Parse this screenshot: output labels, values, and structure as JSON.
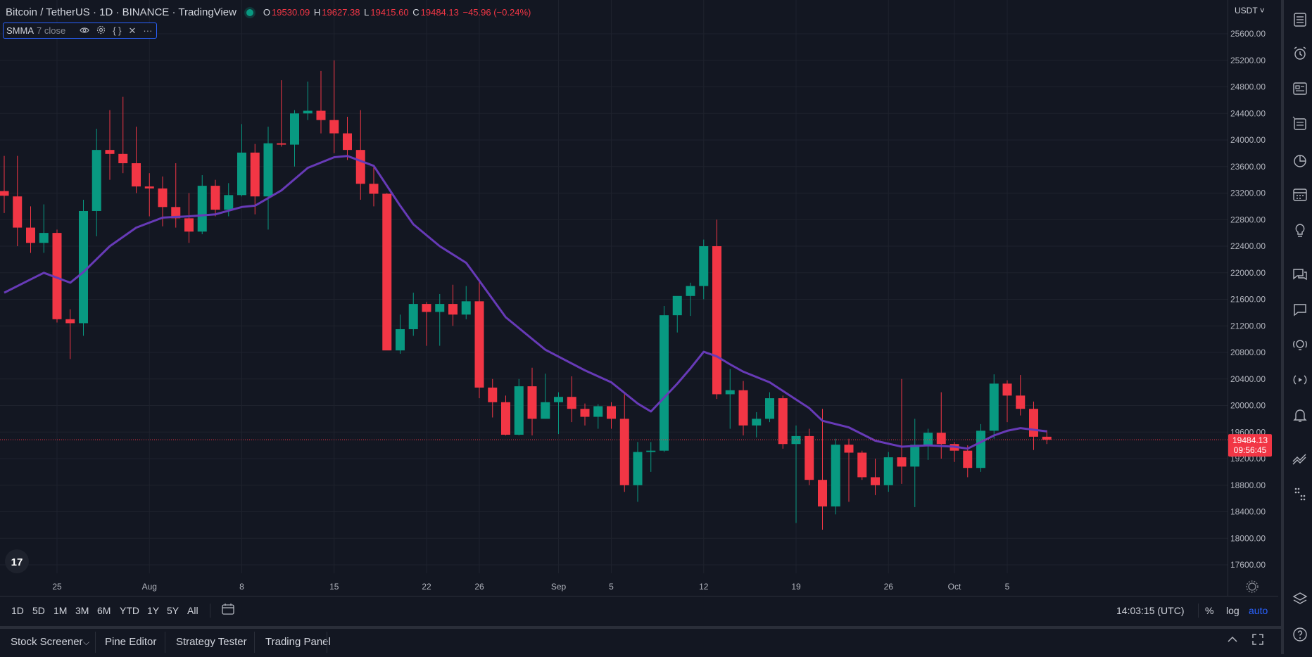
{
  "header": {
    "symbol_title": "Bitcoin / TetherUS · 1D · BINANCE · TradingView",
    "ohlc": {
      "o_key": "O",
      "o": "19530.09",
      "h_key": "H",
      "h": "19627.38",
      "l_key": "L",
      "l": "19415.60",
      "c_key": "C",
      "c": "19484.13",
      "chg": "−45.96 (−0.24%)"
    },
    "status_color": "#089981"
  },
  "indicator": {
    "name": "SMMA",
    "args": "7 close",
    "icons": [
      "eye-icon",
      "gear-icon",
      "braces-icon",
      "close-icon",
      "more-icon"
    ]
  },
  "price_axis": {
    "currency": "USDT",
    "labels": [
      "25600.00",
      "25200.00",
      "24800.00",
      "24400.00",
      "24000.00",
      "23600.00",
      "23200.00",
      "22800.00",
      "22400.00",
      "22000.00",
      "21600.00",
      "21200.00",
      "20800.00",
      "20400.00",
      "20000.00",
      "19600.00",
      "19200.00",
      "18800.00",
      "18400.00",
      "18000.00",
      "17600.00"
    ],
    "last_price": "19484.13",
    "countdown": "09:56:45"
  },
  "time_axis": {
    "labels": [
      "25",
      "Aug",
      "8",
      "15",
      "22",
      "26",
      "Sep",
      "5",
      "12",
      "19",
      "26",
      "Oct",
      "5"
    ]
  },
  "range_bar": {
    "buttons": [
      "1D",
      "5D",
      "1M",
      "3M",
      "6M",
      "YTD",
      "1Y",
      "5Y",
      "All"
    ],
    "clock": "14:03:15 (UTC)",
    "pct": "%",
    "log": "log",
    "auto": "auto"
  },
  "bottom_panel": {
    "tabs": [
      "Stock Screener",
      "Pine Editor",
      "Strategy Tester",
      "Trading Panel"
    ]
  },
  "colors": {
    "up": "#089981",
    "down": "#f23645",
    "smma": "#673ab7",
    "accent": "#2962ff",
    "bg": "#131722",
    "grid": "#1e222d"
  },
  "chart_data": {
    "type": "candlestick",
    "title": "Bitcoin / TetherUS · 1D · BINANCE",
    "ylim": [
      17400,
      25900
    ],
    "x_start": "2022-07-21",
    "x_end": "2022-10-07",
    "candles": [
      {
        "date": "2022-07-21",
        "o": 23230,
        "h": 23760,
        "l": 22900,
        "c": 23160
      },
      {
        "date": "2022-07-22",
        "o": 23150,
        "h": 23760,
        "l": 22400,
        "c": 22680
      },
      {
        "date": "2022-07-23",
        "o": 22680,
        "h": 23000,
        "l": 22300,
        "c": 22450
      },
      {
        "date": "2022-07-24",
        "o": 22450,
        "h": 23030,
        "l": 22300,
        "c": 22600
      },
      {
        "date": "2022-07-25",
        "o": 22600,
        "h": 22650,
        "l": 21250,
        "c": 21300
      },
      {
        "date": "2022-07-26",
        "o": 21300,
        "h": 21450,
        "l": 20700,
        "c": 21240
      },
      {
        "date": "2022-07-27",
        "o": 21240,
        "h": 23100,
        "l": 21050,
        "c": 22930
      },
      {
        "date": "2022-07-28",
        "o": 22930,
        "h": 24170,
        "l": 22550,
        "c": 23850
      },
      {
        "date": "2022-07-29",
        "o": 23850,
        "h": 24450,
        "l": 23400,
        "c": 23790
      },
      {
        "date": "2022-07-30",
        "o": 23790,
        "h": 24650,
        "l": 23500,
        "c": 23650
      },
      {
        "date": "2022-07-31",
        "o": 23650,
        "h": 24200,
        "l": 23200,
        "c": 23300
      },
      {
        "date": "2022-08-01",
        "o": 23300,
        "h": 23500,
        "l": 22850,
        "c": 23270
      },
      {
        "date": "2022-08-02",
        "o": 23270,
        "h": 23450,
        "l": 22700,
        "c": 22990
      },
      {
        "date": "2022-08-03",
        "o": 22990,
        "h": 23650,
        "l": 22680,
        "c": 22820
      },
      {
        "date": "2022-08-04",
        "o": 22820,
        "h": 23200,
        "l": 22450,
        "c": 22620
      },
      {
        "date": "2022-08-05",
        "o": 22620,
        "h": 23470,
        "l": 22580,
        "c": 23310
      },
      {
        "date": "2022-08-06",
        "o": 23310,
        "h": 23400,
        "l": 22850,
        "c": 22950
      },
      {
        "date": "2022-08-07",
        "o": 22950,
        "h": 23350,
        "l": 22850,
        "c": 23170
      },
      {
        "date": "2022-08-08",
        "o": 23170,
        "h": 24240,
        "l": 23150,
        "c": 23810
      },
      {
        "date": "2022-08-09",
        "o": 23810,
        "h": 23940,
        "l": 22880,
        "c": 23150
      },
      {
        "date": "2022-08-10",
        "o": 23150,
        "h": 24200,
        "l": 22650,
        "c": 23950
      },
      {
        "date": "2022-08-11",
        "o": 23950,
        "h": 24900,
        "l": 23900,
        "c": 23930
      },
      {
        "date": "2022-08-12",
        "o": 23930,
        "h": 24450,
        "l": 23600,
        "c": 24400
      },
      {
        "date": "2022-08-13",
        "o": 24400,
        "h": 24880,
        "l": 24300,
        "c": 24440
      },
      {
        "date": "2022-08-14",
        "o": 24440,
        "h": 25040,
        "l": 24100,
        "c": 24300
      },
      {
        "date": "2022-08-15",
        "o": 24300,
        "h": 25200,
        "l": 23800,
        "c": 24100
      },
      {
        "date": "2022-08-16",
        "o": 24100,
        "h": 24350,
        "l": 23700,
        "c": 23850
      },
      {
        "date": "2022-08-17",
        "o": 23850,
        "h": 24450,
        "l": 23100,
        "c": 23340
      },
      {
        "date": "2022-08-18",
        "o": 23340,
        "h": 23600,
        "l": 23000,
        "c": 23190
      },
      {
        "date": "2022-08-19",
        "o": 23190,
        "h": 23200,
        "l": 20850,
        "c": 20830
      },
      {
        "date": "2022-08-20",
        "o": 20830,
        "h": 21370,
        "l": 20780,
        "c": 21150
      },
      {
        "date": "2022-08-21",
        "o": 21150,
        "h": 21700,
        "l": 21050,
        "c": 21530
      },
      {
        "date": "2022-08-22",
        "o": 21530,
        "h": 21560,
        "l": 20900,
        "c": 21410
      },
      {
        "date": "2022-08-23",
        "o": 21410,
        "h": 21680,
        "l": 20900,
        "c": 21530
      },
      {
        "date": "2022-08-24",
        "o": 21530,
        "h": 21820,
        "l": 21200,
        "c": 21370
      },
      {
        "date": "2022-08-25",
        "o": 21370,
        "h": 21800,
        "l": 21300,
        "c": 21570
      },
      {
        "date": "2022-08-26",
        "o": 21570,
        "h": 21890,
        "l": 20110,
        "c": 20270
      },
      {
        "date": "2022-08-27",
        "o": 20270,
        "h": 20400,
        "l": 19820,
        "c": 20050
      },
      {
        "date": "2022-08-28",
        "o": 20050,
        "h": 20150,
        "l": 19550,
        "c": 19560
      },
      {
        "date": "2022-08-29",
        "o": 19560,
        "h": 20400,
        "l": 19550,
        "c": 20290
      },
      {
        "date": "2022-08-30",
        "o": 20290,
        "h": 20570,
        "l": 19550,
        "c": 19800
      },
      {
        "date": "2022-08-31",
        "o": 19800,
        "h": 20480,
        "l": 19800,
        "c": 20050
      },
      {
        "date": "2022-09-01",
        "o": 20050,
        "h": 20200,
        "l": 19570,
        "c": 20130
      },
      {
        "date": "2022-09-02",
        "o": 20130,
        "h": 20440,
        "l": 19750,
        "c": 19950
      },
      {
        "date": "2022-09-03",
        "o": 19950,
        "h": 20030,
        "l": 19700,
        "c": 19830
      },
      {
        "date": "2022-09-04",
        "o": 19830,
        "h": 20020,
        "l": 19650,
        "c": 19990
      },
      {
        "date": "2022-09-05",
        "o": 19990,
        "h": 20050,
        "l": 19650,
        "c": 19800
      },
      {
        "date": "2022-09-06",
        "o": 19800,
        "h": 20170,
        "l": 18700,
        "c": 18800
      },
      {
        "date": "2022-09-07",
        "o": 18800,
        "h": 19450,
        "l": 18550,
        "c": 19300
      },
      {
        "date": "2022-09-08",
        "o": 19300,
        "h": 19450,
        "l": 19000,
        "c": 19320
      },
      {
        "date": "2022-09-09",
        "o": 19320,
        "h": 21500,
        "l": 19300,
        "c": 21360
      },
      {
        "date": "2022-09-10",
        "o": 21360,
        "h": 21600,
        "l": 21100,
        "c": 21650
      },
      {
        "date": "2022-09-11",
        "o": 21650,
        "h": 21850,
        "l": 21350,
        "c": 21800
      },
      {
        "date": "2022-09-12",
        "o": 21800,
        "h": 22500,
        "l": 21600,
        "c": 22400
      },
      {
        "date": "2022-09-13",
        "o": 22400,
        "h": 22800,
        "l": 20100,
        "c": 20170
      },
      {
        "date": "2022-09-14",
        "o": 20170,
        "h": 20550,
        "l": 19650,
        "c": 20230
      },
      {
        "date": "2022-09-15",
        "o": 20230,
        "h": 20370,
        "l": 19550,
        "c": 19700
      },
      {
        "date": "2022-09-16",
        "o": 19700,
        "h": 19900,
        "l": 19520,
        "c": 19800
      },
      {
        "date": "2022-09-17",
        "o": 19800,
        "h": 20200,
        "l": 19750,
        "c": 20110
      },
      {
        "date": "2022-09-18",
        "o": 20110,
        "h": 20150,
        "l": 19350,
        "c": 19420
      },
      {
        "date": "2022-09-19",
        "o": 19420,
        "h": 19700,
        "l": 18230,
        "c": 19540
      },
      {
        "date": "2022-09-20",
        "o": 19540,
        "h": 19650,
        "l": 18800,
        "c": 18880
      },
      {
        "date": "2022-09-21",
        "o": 18880,
        "h": 19950,
        "l": 18130,
        "c": 18480
      },
      {
        "date": "2022-09-22",
        "o": 18480,
        "h": 19500,
        "l": 18360,
        "c": 19410
      },
      {
        "date": "2022-09-23",
        "o": 19410,
        "h": 19500,
        "l": 18550,
        "c": 19290
      },
      {
        "date": "2022-09-24",
        "o": 19290,
        "h": 19320,
        "l": 18880,
        "c": 18920
      },
      {
        "date": "2022-09-25",
        "o": 18920,
        "h": 19200,
        "l": 18650,
        "c": 18800
      },
      {
        "date": "2022-09-26",
        "o": 18800,
        "h": 19300,
        "l": 18700,
        "c": 19220
      },
      {
        "date": "2022-09-27",
        "o": 19220,
        "h": 20400,
        "l": 18820,
        "c": 19080
      },
      {
        "date": "2022-09-28",
        "o": 19080,
        "h": 19800,
        "l": 18470,
        "c": 19410
      },
      {
        "date": "2022-09-29",
        "o": 19410,
        "h": 19650,
        "l": 19180,
        "c": 19590
      },
      {
        "date": "2022-09-30",
        "o": 19590,
        "h": 20200,
        "l": 19200,
        "c": 19420
      },
      {
        "date": "2022-10-01",
        "o": 19420,
        "h": 19450,
        "l": 19150,
        "c": 19320
      },
      {
        "date": "2022-10-02",
        "o": 19320,
        "h": 19400,
        "l": 18920,
        "c": 19060
      },
      {
        "date": "2022-10-03",
        "o": 19060,
        "h": 19720,
        "l": 19000,
        "c": 19620
      },
      {
        "date": "2022-10-04",
        "o": 19620,
        "h": 20470,
        "l": 19500,
        "c": 20330
      },
      {
        "date": "2022-10-05",
        "o": 20330,
        "h": 20380,
        "l": 19750,
        "c": 20150
      },
      {
        "date": "2022-10-06",
        "o": 20150,
        "h": 20460,
        "l": 19850,
        "c": 19950
      },
      {
        "date": "2022-10-07",
        "o": 19950,
        "h": 20060,
        "l": 19330,
        "c": 19530
      },
      {
        "date": "2022-10-08",
        "o": 19530,
        "h": 19630,
        "l": 19420,
        "c": 19484
      }
    ],
    "smma": [
      {
        "date": "2022-07-21",
        "v": 21700
      },
      {
        "date": "2022-07-23",
        "v": 21900
      },
      {
        "date": "2022-07-24",
        "v": 22000
      },
      {
        "date": "2022-07-26",
        "v": 21850
      },
      {
        "date": "2022-07-27",
        "v": 22010
      },
      {
        "date": "2022-07-29",
        "v": 22400
      },
      {
        "date": "2022-07-31",
        "v": 22680
      },
      {
        "date": "2022-08-02",
        "v": 22830
      },
      {
        "date": "2022-08-04",
        "v": 22850
      },
      {
        "date": "2022-08-06",
        "v": 22880
      },
      {
        "date": "2022-08-08",
        "v": 22990
      },
      {
        "date": "2022-08-09",
        "v": 23010
      },
      {
        "date": "2022-08-11",
        "v": 23240
      },
      {
        "date": "2022-08-13",
        "v": 23580
      },
      {
        "date": "2022-08-15",
        "v": 23740
      },
      {
        "date": "2022-08-16",
        "v": 23760
      },
      {
        "date": "2022-08-18",
        "v": 23610
      },
      {
        "date": "2022-08-20",
        "v": 23010
      },
      {
        "date": "2022-08-21",
        "v": 22730
      },
      {
        "date": "2022-08-23",
        "v": 22400
      },
      {
        "date": "2022-08-25",
        "v": 22150
      },
      {
        "date": "2022-08-26",
        "v": 21880
      },
      {
        "date": "2022-08-28",
        "v": 21330
      },
      {
        "date": "2022-08-31",
        "v": 20840
      },
      {
        "date": "2022-09-03",
        "v": 20530
      },
      {
        "date": "2022-09-05",
        "v": 20350
      },
      {
        "date": "2022-09-07",
        "v": 20030
      },
      {
        "date": "2022-09-08",
        "v": 19910
      },
      {
        "date": "2022-09-10",
        "v": 20330
      },
      {
        "date": "2022-09-11",
        "v": 20560
      },
      {
        "date": "2022-09-12",
        "v": 20810
      },
      {
        "date": "2022-09-13",
        "v": 20740
      },
      {
        "date": "2022-09-14",
        "v": 20620
      },
      {
        "date": "2022-09-15",
        "v": 20510
      },
      {
        "date": "2022-09-17",
        "v": 20350
      },
      {
        "date": "2022-09-18",
        "v": 20220
      },
      {
        "date": "2022-09-19",
        "v": 20090
      },
      {
        "date": "2022-09-20",
        "v": 19960
      },
      {
        "date": "2022-09-21",
        "v": 19770
      },
      {
        "date": "2022-09-23",
        "v": 19670
      },
      {
        "date": "2022-09-25",
        "v": 19470
      },
      {
        "date": "2022-09-27",
        "v": 19380
      },
      {
        "date": "2022-09-29",
        "v": 19400
      },
      {
        "date": "2022-10-01",
        "v": 19380
      },
      {
        "date": "2022-10-02",
        "v": 19350
      },
      {
        "date": "2022-10-04",
        "v": 19550
      },
      {
        "date": "2022-10-05",
        "v": 19620
      },
      {
        "date": "2022-10-06",
        "v": 19660
      },
      {
        "date": "2022-10-08",
        "v": 19610
      }
    ]
  }
}
